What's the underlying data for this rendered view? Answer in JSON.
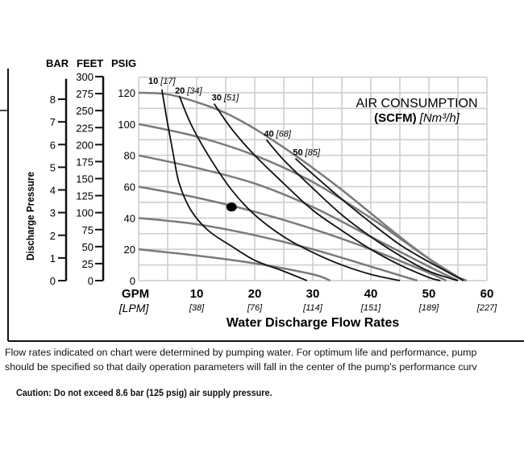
{
  "chart_data": {
    "type": "line",
    "title": "AIR CONSUMPTION",
    "title_units_bold": "(SCFM)",
    "title_units_italic": "[Nm³/h]",
    "xlabel": "Water Discharge Flow Rates",
    "x_unit": "GPM",
    "x_unit_alt": "[LPM]",
    "ylabel": "Discharge Pressure",
    "xlim": [
      0,
      60
    ],
    "ylim": [
      0,
      130
    ],
    "grid": true,
    "x_ticks": [
      {
        "v": 10,
        "alt": "[38]"
      },
      {
        "v": 20,
        "alt": "[76]"
      },
      {
        "v": 30,
        "alt": "[114]"
      },
      {
        "v": 40,
        "alt": "[151]"
      },
      {
        "v": 50,
        "alt": "[189]"
      },
      {
        "v": 60,
        "alt": "[227]"
      }
    ],
    "psig_ticks": [
      0,
      20,
      40,
      60,
      80,
      100,
      120
    ],
    "axis_headers": {
      "bar": "BAR",
      "feet": "FEET",
      "psig": "PSIG"
    },
    "bar_ticks": [
      0,
      1,
      2,
      3,
      4,
      5,
      6,
      7,
      8
    ],
    "feet_ticks": [
      0,
      25,
      50,
      75,
      100,
      125,
      150,
      175,
      200,
      225,
      250,
      275,
      300
    ],
    "pressure_curves": [
      {
        "psig": 120,
        "points": [
          [
            0,
            120
          ],
          [
            5,
            119
          ],
          [
            10,
            114
          ],
          [
            15,
            107
          ],
          [
            20,
            97
          ],
          [
            25,
            85
          ],
          [
            30,
            72
          ],
          [
            35,
            58
          ],
          [
            40,
            43
          ],
          [
            45,
            28
          ],
          [
            50,
            14
          ],
          [
            54,
            4
          ],
          [
            56.5,
            0
          ]
        ]
      },
      {
        "psig": 100,
        "points": [
          [
            0,
            100
          ],
          [
            10,
            92
          ],
          [
            20,
            80
          ],
          [
            30,
            63
          ],
          [
            40,
            40
          ],
          [
            45,
            27
          ],
          [
            50,
            14
          ],
          [
            56,
            0
          ]
        ]
      },
      {
        "psig": 80,
        "points": [
          [
            0,
            80
          ],
          [
            10,
            72
          ],
          [
            20,
            62
          ],
          [
            30,
            47
          ],
          [
            40,
            28
          ],
          [
            50,
            9
          ],
          [
            55,
            0
          ]
        ]
      },
      {
        "psig": 60,
        "points": [
          [
            0,
            60
          ],
          [
            10,
            53
          ],
          [
            20,
            44
          ],
          [
            30,
            33
          ],
          [
            40,
            20
          ],
          [
            50,
            5
          ],
          [
            53,
            0
          ]
        ]
      },
      {
        "psig": 40,
        "points": [
          [
            0,
            40
          ],
          [
            10,
            36
          ],
          [
            20,
            29
          ],
          [
            30,
            20
          ],
          [
            40,
            9
          ],
          [
            48,
            0
          ]
        ]
      },
      {
        "psig": 20,
        "points": [
          [
            0,
            20
          ],
          [
            10,
            16
          ],
          [
            20,
            11
          ],
          [
            30,
            4
          ],
          [
            33,
            0
          ]
        ]
      }
    ],
    "air_curves": [
      {
        "label": "10",
        "alt": "[17]",
        "points": [
          [
            4,
            122
          ],
          [
            5,
            100
          ],
          [
            6,
            80
          ],
          [
            7,
            62
          ],
          [
            9,
            45
          ],
          [
            12,
            32
          ],
          [
            16,
            22
          ],
          [
            20,
            13
          ],
          [
            25,
            6
          ],
          [
            29,
            0
          ]
        ]
      },
      {
        "label": "20",
        "alt": "[34]",
        "points": [
          [
            7,
            118
          ],
          [
            9,
            100
          ],
          [
            12,
            80
          ],
          [
            16,
            58
          ],
          [
            20,
            42
          ],
          [
            25,
            28
          ],
          [
            30,
            18
          ],
          [
            35,
            10
          ],
          [
            40,
            4
          ],
          [
            45,
            0
          ]
        ]
      },
      {
        "label": "30",
        "alt": "[51]",
        "points": [
          [
            13,
            113
          ],
          [
            16,
            97
          ],
          [
            20,
            80
          ],
          [
            25,
            62
          ],
          [
            30,
            45
          ],
          [
            35,
            32
          ],
          [
            40,
            20
          ],
          [
            45,
            10
          ],
          [
            50,
            2
          ],
          [
            52,
            0
          ]
        ]
      },
      {
        "label": "40",
        "alt": "[68]",
        "points": [
          [
            22,
            90
          ],
          [
            25,
            77
          ],
          [
            30,
            59
          ],
          [
            35,
            42
          ],
          [
            40,
            28
          ],
          [
            45,
            16
          ],
          [
            50,
            6
          ],
          [
            55,
            0
          ]
        ]
      },
      {
        "label": "50",
        "alt": "[85]",
        "points": [
          [
            27,
            78
          ],
          [
            30,
            68
          ],
          [
            35,
            52
          ],
          [
            40,
            37
          ],
          [
            45,
            23
          ],
          [
            50,
            12
          ],
          [
            56,
            0
          ]
        ]
      }
    ],
    "marker_point": [
      16,
      47
    ],
    "colors": {
      "pressure_curve": "#7a7a7a",
      "air_curve": "#111111",
      "grid": "#cccccc"
    }
  },
  "notes": {
    "line1": "Flow rates indicated on chart were determined by pumping water. For optimum life and performance, pump",
    "line2": "should be specified so that daily operation parameters will fall in the center of the pump's performance curv",
    "caution": "Caution: Do not exceed 8.6 bar (125 psig) air supply pressure."
  }
}
